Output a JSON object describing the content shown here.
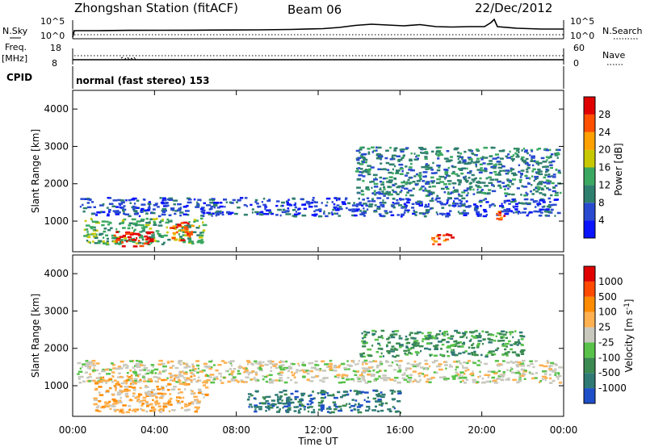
{
  "header": {
    "station": "Zhongshan Station (fitACF)",
    "beam": "Beam 06",
    "date": "22/Dec/2012"
  },
  "summary_panel": {
    "left_top_label": "N.Sky",
    "left_top_ticks": [
      "10^5",
      "10^0"
    ],
    "right_top_label": "N.Search",
    "right_top_ticks": [
      "10^5",
      "10^0"
    ],
    "left_mid_label": "Freq.",
    "left_mid_unit": "[MHz]",
    "left_mid_ticks": [
      "18",
      "8"
    ],
    "right_mid_label": "Nave",
    "right_mid_ticks": [
      "60",
      "0"
    ],
    "cpid_label": "CPID",
    "cpid_text": "normal (fast stereo) 153"
  },
  "chart_data": [
    {
      "type": "heatmap",
      "panel": "power",
      "ylabel": "Slant Range [km]",
      "ylim": [
        180,
        4500
      ],
      "yticks": [
        1000,
        2000,
        3000,
        4000
      ],
      "xlim": [
        0,
        24
      ],
      "xticks": [
        "00:00",
        "04:00",
        "08:00",
        "12:00",
        "16:00",
        "20:00",
        "00:00"
      ],
      "colorbar": {
        "label": "Power [dB]",
        "ticks": [
          4,
          8,
          12,
          16,
          20,
          24,
          28
        ],
        "colors": [
          "#0a14ff",
          "#2a4ad0",
          "#2f7f6e",
          "#3aa860",
          "#c8c800",
          "#ffa000",
          "#ff5000",
          "#e00000"
        ]
      },
      "regions": [
        {
          "t": [
            0.3,
            23.8
          ],
          "r": [
            1150,
            1650
          ],
          "level": 1
        },
        {
          "t": [
            0.5,
            6.5
          ],
          "r": [
            400,
            1100
          ],
          "level": 3
        },
        {
          "t": [
            2.0,
            3.8
          ],
          "r": [
            350,
            750
          ],
          "level": 7
        },
        {
          "t": [
            4.7,
            5.8
          ],
          "r": [
            500,
            1000
          ],
          "level": 6
        },
        {
          "t": [
            13.8,
            23.8
          ],
          "r": [
            1700,
            3000
          ],
          "level": 2
        },
        {
          "t": [
            17.5,
            18.5
          ],
          "r": [
            400,
            700
          ],
          "level": 6
        },
        {
          "t": [
            20.6,
            21.2
          ],
          "r": [
            1050,
            1300
          ],
          "level": 6
        }
      ]
    },
    {
      "type": "heatmap",
      "panel": "velocity",
      "ylabel": "Slant Range [km]",
      "ylim": [
        180,
        4500
      ],
      "yticks": [
        1000,
        2000,
        3000,
        4000
      ],
      "xlim": [
        0,
        24
      ],
      "xticks": [
        "00:00",
        "04:00",
        "08:00",
        "12:00",
        "16:00",
        "20:00",
        "00:00"
      ],
      "xlabel": "Time UT",
      "colorbar": {
        "label": "Velocity [m s-1]",
        "label_main": "Velocity [m s",
        "label_sup": "-1",
        "label_end": "]",
        "ticks": [
          "1000",
          "500",
          "100",
          "25",
          "-25",
          "-100",
          "-500",
          "-1000"
        ],
        "colors": [
          "#1e4fc8",
          "#2f7a74",
          "#3a8a52",
          "#58c24a",
          "#c8c8be",
          "#ffb050",
          "#ff8c00",
          "#ff4a00",
          "#e00000"
        ]
      },
      "regions": [
        {
          "t": [
            0.2,
            23.8
          ],
          "r": [
            1100,
            1700
          ],
          "level": 4
        },
        {
          "t": [
            1.0,
            6.5
          ],
          "r": [
            300,
            1300
          ],
          "level": 5
        },
        {
          "t": [
            8.5,
            16.0
          ],
          "r": [
            300,
            900
          ],
          "level": 1
        },
        {
          "t": [
            14.0,
            22.0
          ],
          "r": [
            1800,
            2500
          ],
          "level": 2
        }
      ]
    }
  ]
}
